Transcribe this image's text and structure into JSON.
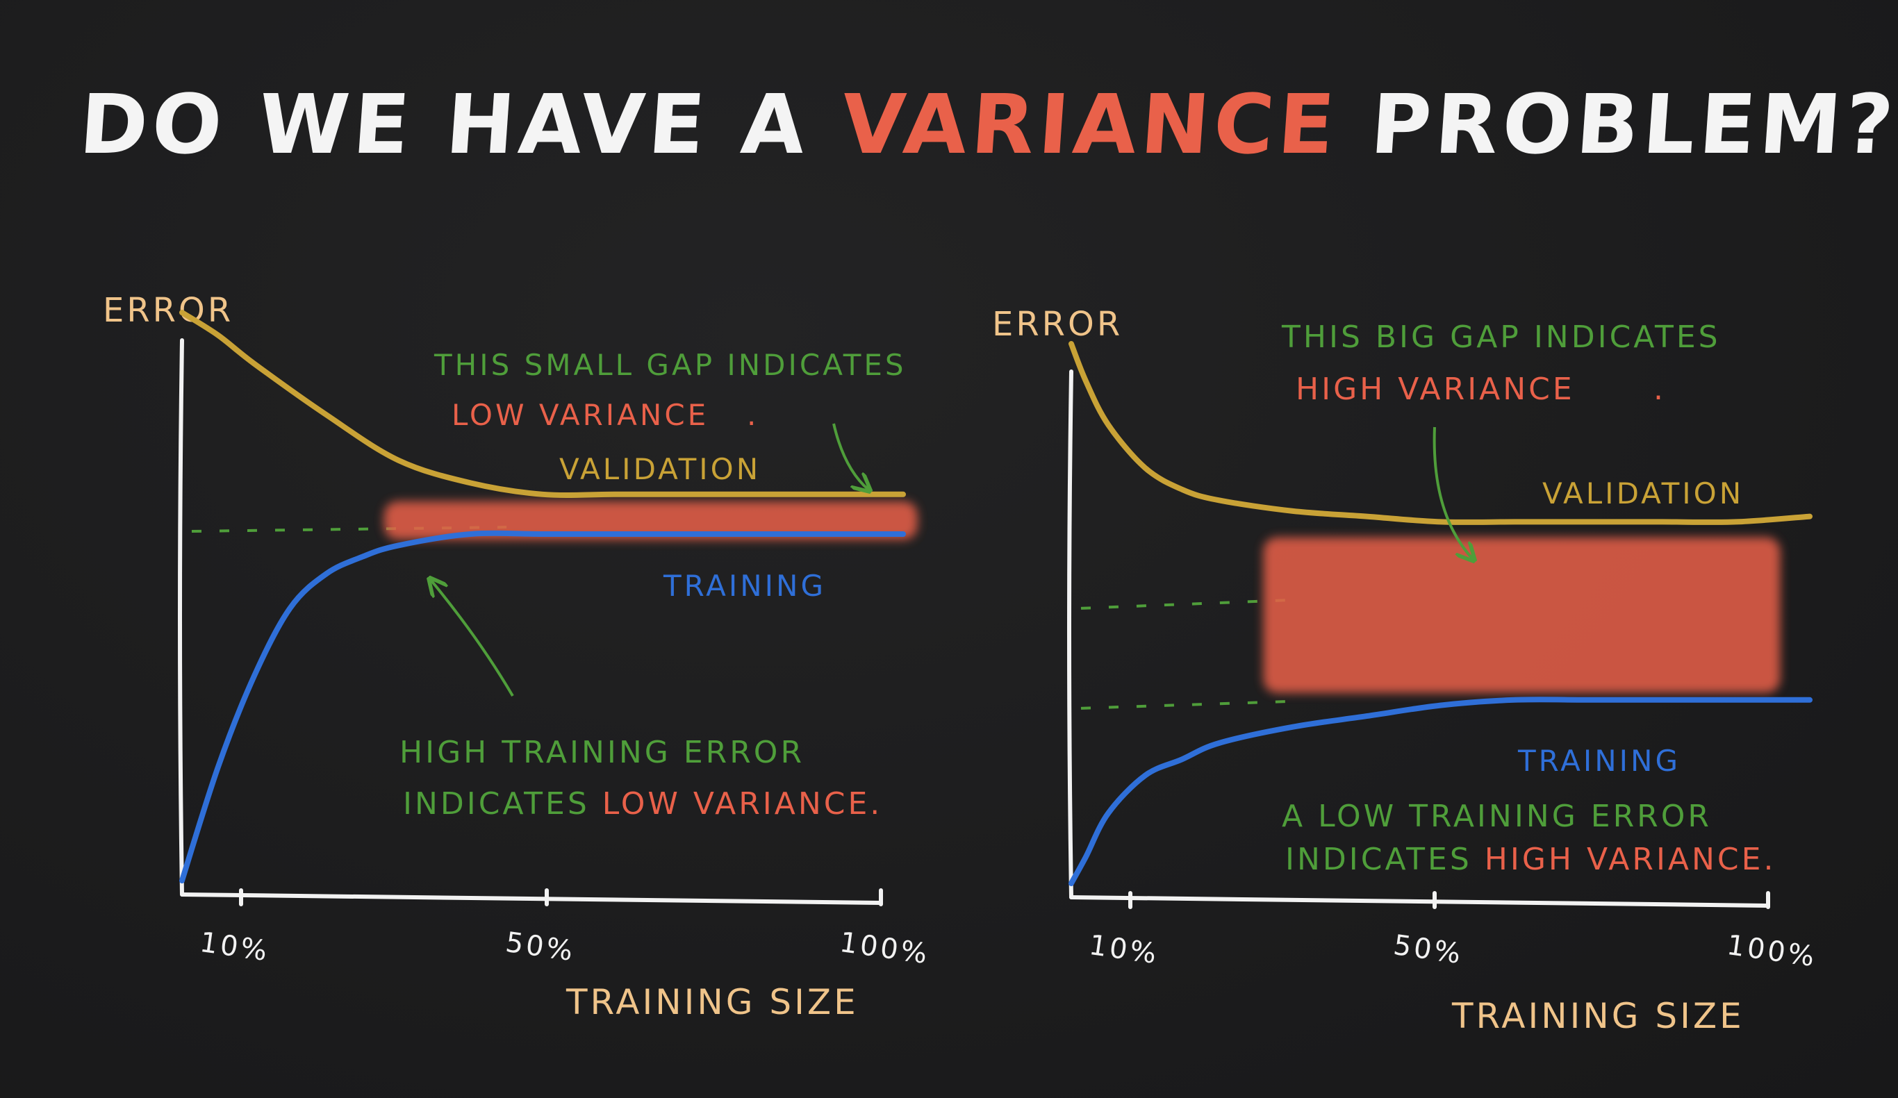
{
  "title": {
    "before": "DO WE HAVE A ",
    "highlight": "VARIANCE",
    "after": " PROBLEM?"
  },
  "colors": {
    "validation": "#c9a236",
    "training": "#2f6fd8",
    "annotation": "#4f9e3a",
    "highlight": "#e9614a",
    "axis_label": "#f0c48a",
    "axis": "#f2f2f2"
  },
  "chart_data": [
    {
      "type": "line",
      "ylabel": "ERROR",
      "xlabel": "TRAINING SIZE",
      "x_ticks": [
        "10%",
        "50%",
        "100%"
      ],
      "xlim": [
        0,
        100
      ],
      "ylim": [
        0,
        1
      ],
      "series": [
        {
          "name": "VALIDATION",
          "x": [
            0,
            5,
            10,
            20,
            30,
            40,
            50,
            60,
            70,
            80,
            90,
            100
          ],
          "y": [
            1.0,
            0.96,
            0.91,
            0.82,
            0.74,
            0.7,
            0.68,
            0.68,
            0.68,
            0.68,
            0.68,
            0.68
          ]
        },
        {
          "name": "TRAINING",
          "x": [
            0,
            5,
            10,
            15,
            20,
            25,
            30,
            40,
            50,
            60,
            70,
            80,
            90,
            100
          ],
          "y": [
            0.0,
            0.2,
            0.36,
            0.48,
            0.54,
            0.57,
            0.59,
            0.61,
            0.61,
            0.61,
            0.61,
            0.61,
            0.61,
            0.61
          ]
        }
      ],
      "annotations": {
        "gap": {
          "line1": "THIS SMALL GAP INDICATES",
          "line2": "LOW VARIANCE",
          "line2_end": "."
        },
        "training": {
          "line1": "HIGH TRAINING ERROR",
          "line2_start": "INDICATES ",
          "line2_hl": "LOW VARIANCE",
          "line2_end": "."
        }
      }
    },
    {
      "type": "line",
      "ylabel": "ERROR",
      "xlabel": "TRAINING SIZE",
      "x_ticks": [
        "10%",
        "50%",
        "100%"
      ],
      "xlim": [
        0,
        100
      ],
      "ylim": [
        0,
        1
      ],
      "series": [
        {
          "name": "VALIDATION",
          "x": [
            0,
            2,
            5,
            10,
            15,
            20,
            30,
            40,
            50,
            60,
            70,
            80,
            90,
            100
          ],
          "y": [
            1.0,
            0.93,
            0.85,
            0.77,
            0.73,
            0.71,
            0.69,
            0.68,
            0.67,
            0.67,
            0.67,
            0.67,
            0.67,
            0.68
          ]
        },
        {
          "name": "TRAINING",
          "x": [
            0,
            2,
            5,
            10,
            15,
            20,
            30,
            40,
            50,
            60,
            70,
            80,
            90,
            100
          ],
          "y": [
            0.0,
            0.05,
            0.13,
            0.2,
            0.23,
            0.26,
            0.29,
            0.31,
            0.33,
            0.34,
            0.34,
            0.34,
            0.34,
            0.34
          ]
        }
      ],
      "annotations": {
        "gap": {
          "line1": "THIS BIG GAP INDICATES",
          "line2": "HIGH VARIANCE",
          "line2_end": "."
        },
        "training": {
          "line1": "A LOW TRAINING ERROR",
          "line2_start": "INDICATES ",
          "line2_hl": "HIGH VARIANCE",
          "line2_end": "."
        }
      }
    }
  ]
}
